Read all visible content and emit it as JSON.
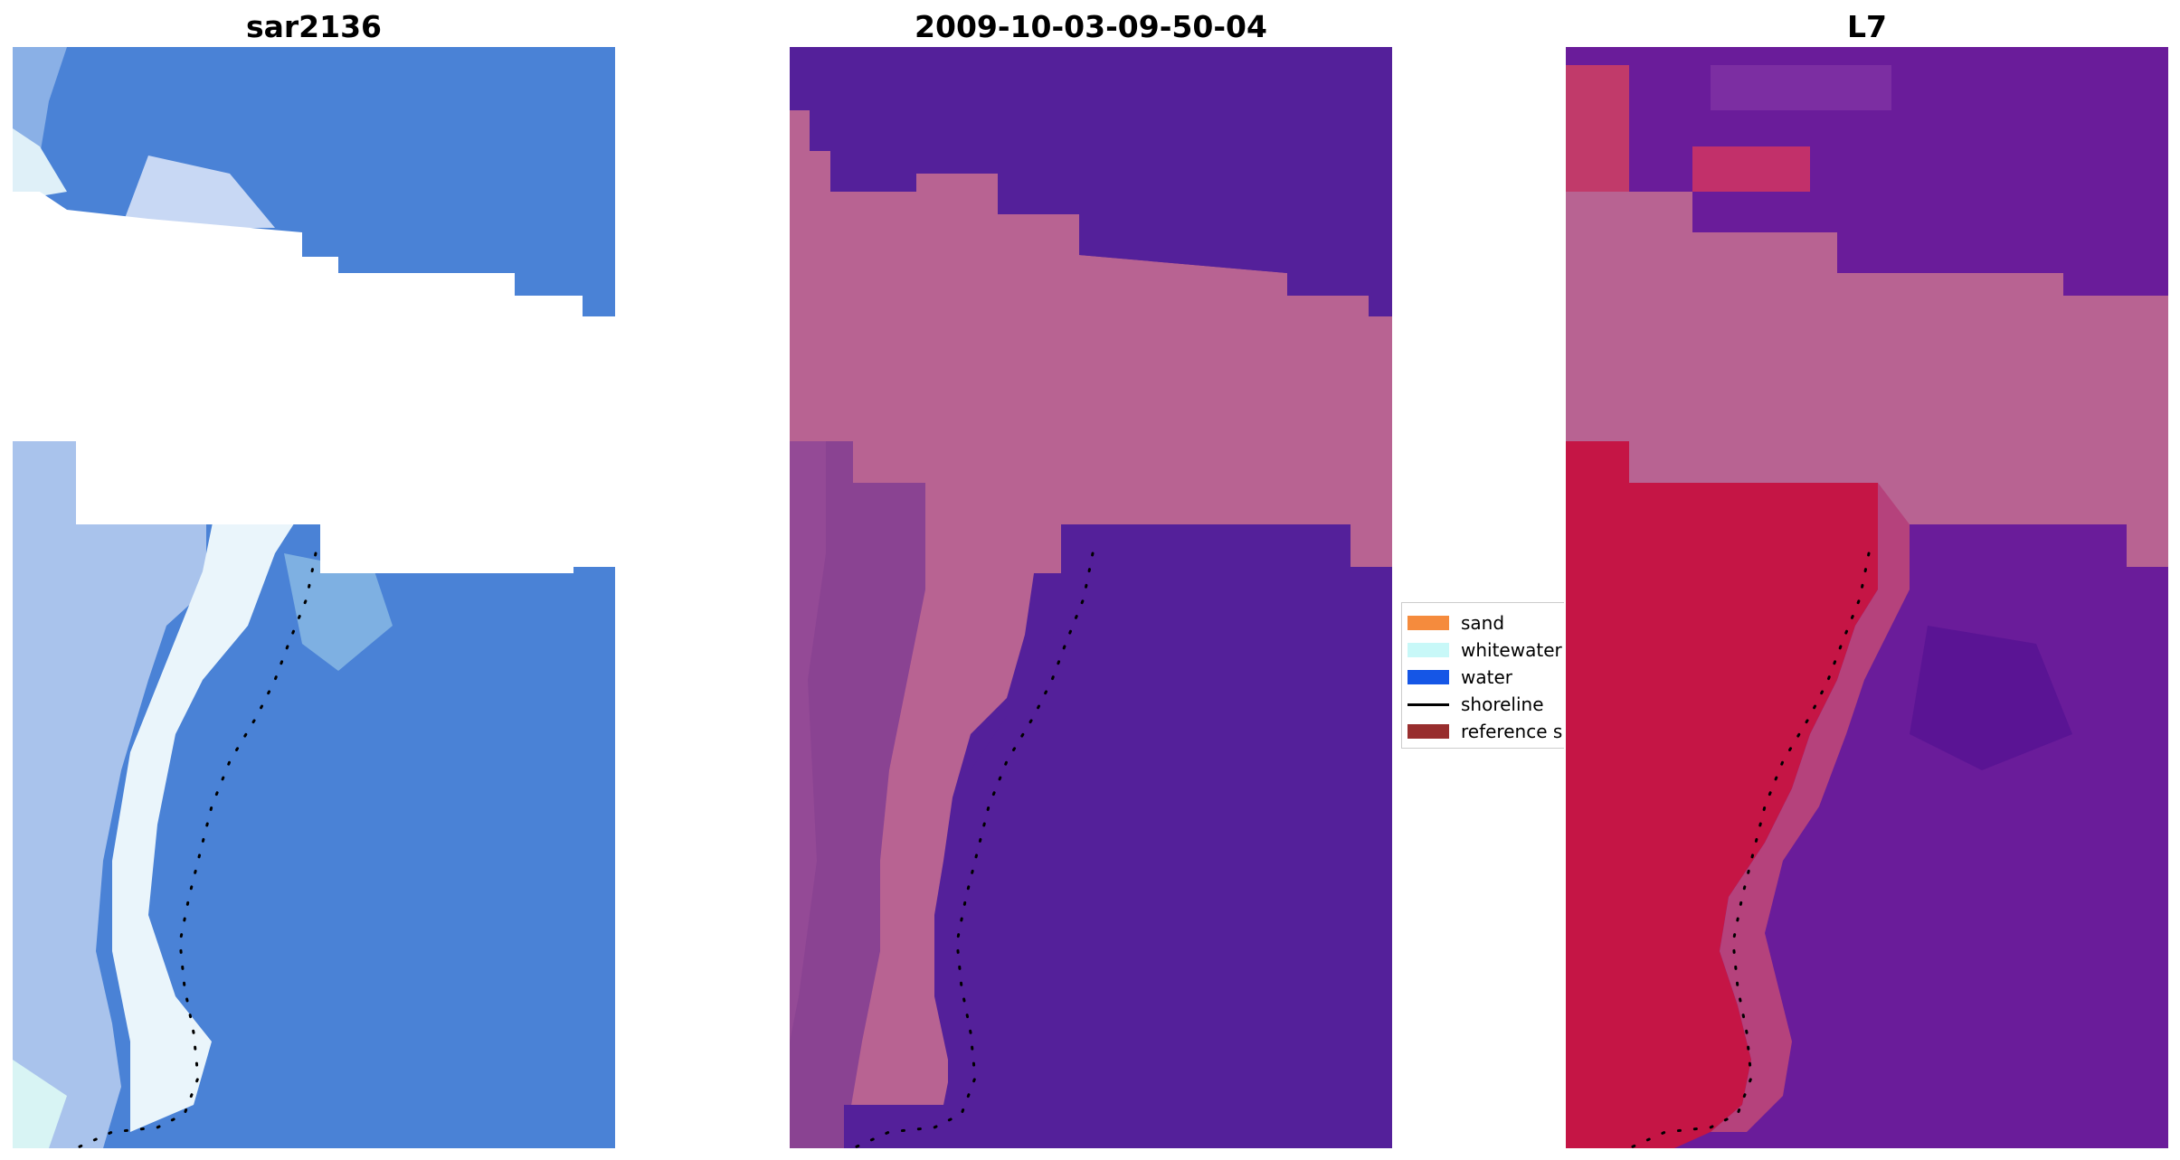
{
  "panels": [
    {
      "title": "sar2136",
      "palette": "rgb"
    },
    {
      "title": "2009-10-03-09-50-04",
      "palette": "class"
    },
    {
      "title": "L7",
      "palette": "index"
    }
  ],
  "legend": [
    {
      "label": "sand",
      "color": "#f58b3d",
      "kind": "patch"
    },
    {
      "label": "whitewater",
      "color": "#c8f8f8",
      "kind": "patch"
    },
    {
      "label": "water",
      "color": "#1556e6",
      "kind": "patch"
    },
    {
      "label": "shoreline",
      "color": "#000000",
      "kind": "line"
    },
    {
      "label": "reference shoreline",
      "color": "#982e2e",
      "kind": "patch"
    }
  ],
  "colors": {
    "rgb_water": "#4a82d6",
    "rgb_whitewater": "#e6f4fa",
    "rgb_beach": "#a9c3ec",
    "class_water": "#54209a",
    "class_land": "#b86392",
    "class_dark_land": "#8a4392",
    "index_water": "#6a1c9a",
    "index_land": "#b86392",
    "index_red": "#c51545",
    "shoreline": "#000000"
  }
}
